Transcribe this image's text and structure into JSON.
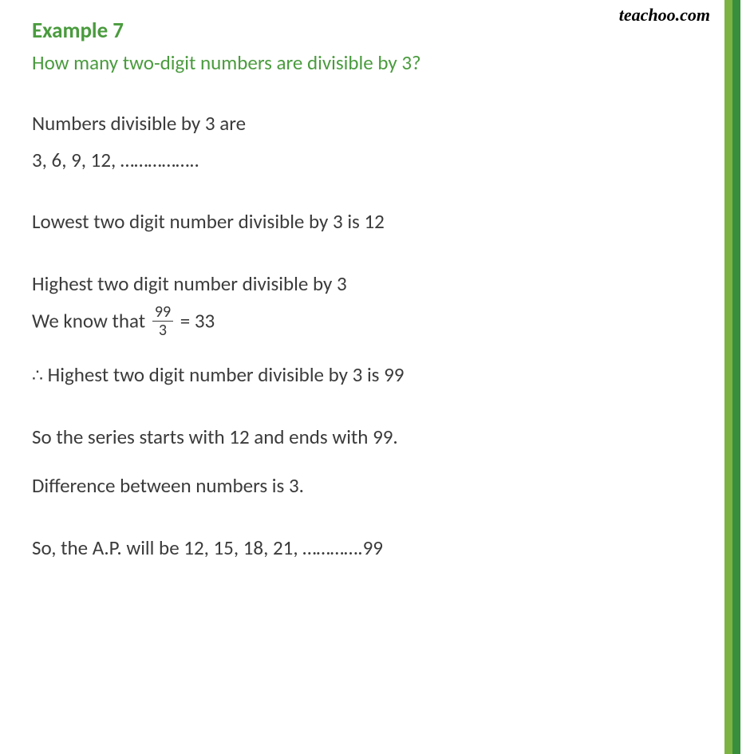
{
  "watermark": "teachoo.com",
  "heading": "Example 7",
  "question": "How many two-digit numbers are divisible by 3?",
  "line1": "Numbers divisible by 3 are",
  "line2": "3, 6, 9, 12, ……………..",
  "line3": "Lowest two digit number divisible by 3 is 12",
  "line4": "Highest two digit number divisible by 3",
  "line5_pre": "We know that ",
  "line5_frac_num": "99",
  "line5_frac_den": "3",
  "line5_post": " = 33",
  "line6_pre": "∴",
  "line6_post": " Highest two digit number divisible by 3 is 99",
  "line7": "So the series starts with 12 and ends with 99.",
  "line8": "Difference between numbers is 3.",
  "line9": "So, the A.P. will be  12, 15, 18, 21, ………….99",
  "colors": {
    "heading_color": "#4a9b3e",
    "body_color": "#3b3b3b",
    "background": "#ffffff",
    "border_light": "#7cb342",
    "border_dark": "#388e3c"
  },
  "typography": {
    "heading_fontsize": 27,
    "question_fontsize": 25,
    "body_fontsize": 25,
    "fraction_fontsize": 20,
    "watermark_fontsize": 22
  }
}
